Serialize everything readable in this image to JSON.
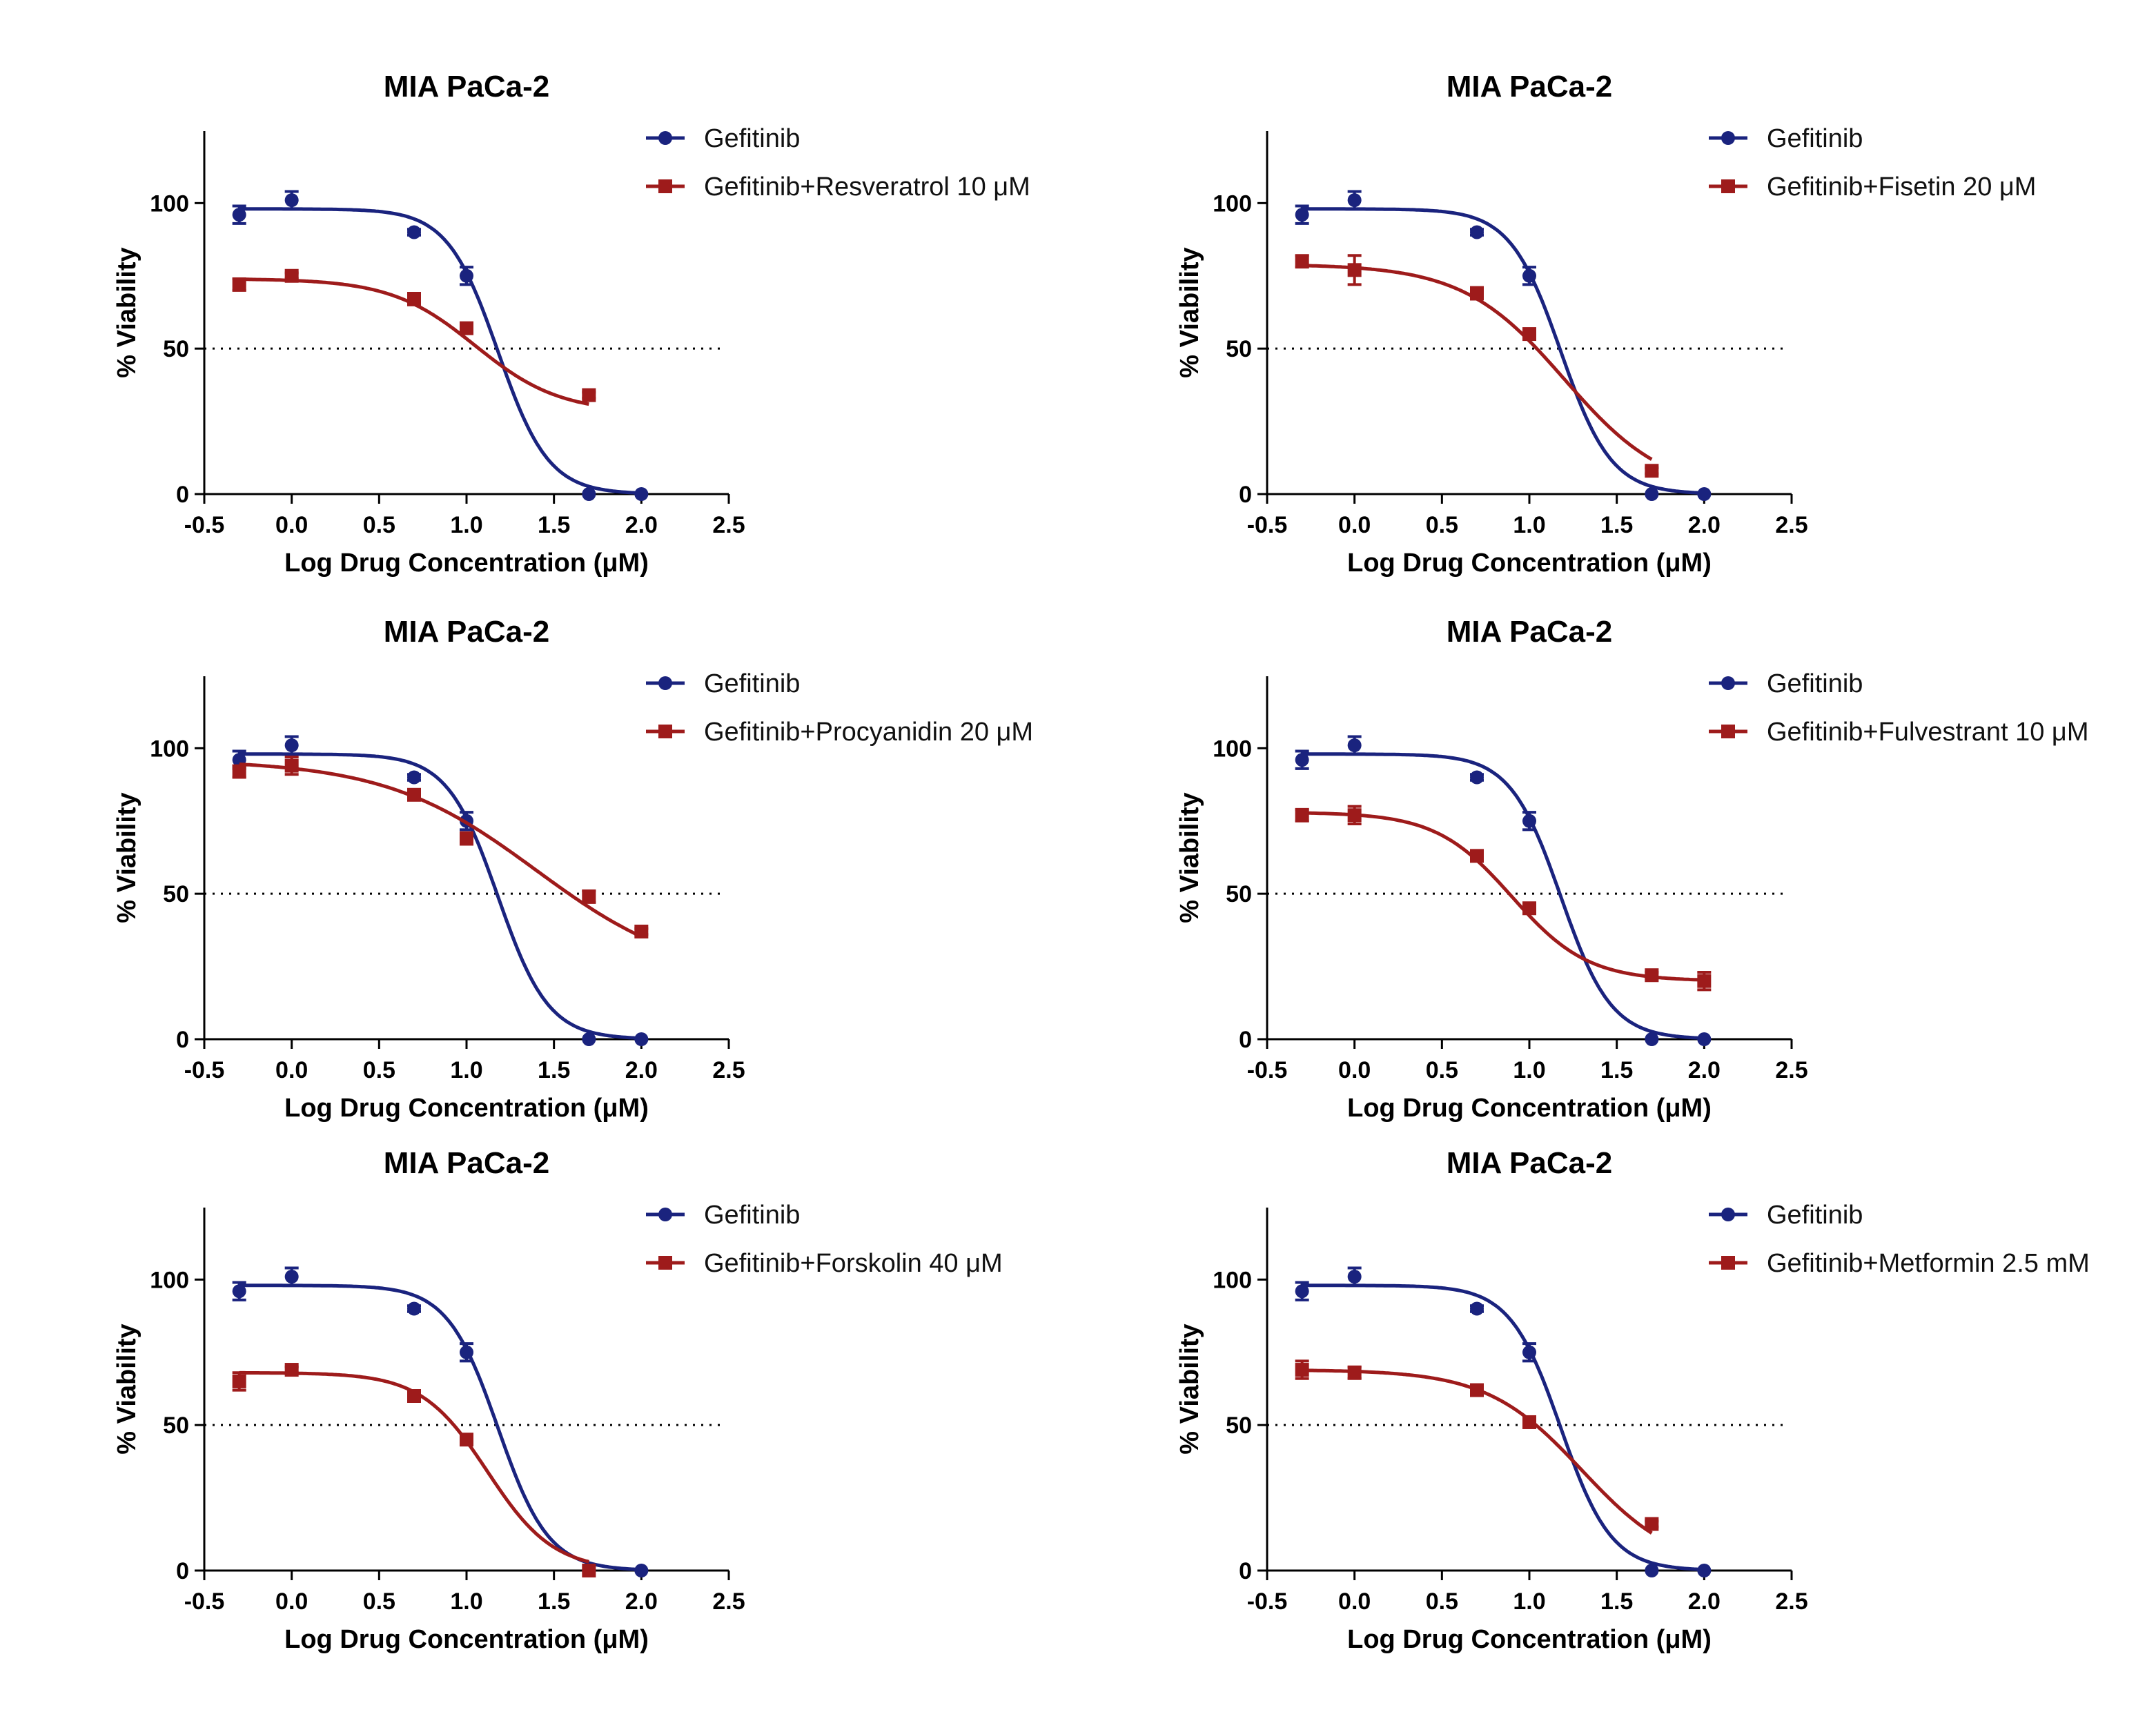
{
  "colors": {
    "gefitinib": "#1a237e",
    "combo": "#9e1b1b",
    "axis": "#000000"
  },
  "chart_data": [
    {
      "type": "line",
      "title": "MIA PaCa-2",
      "xlabel": "Log Drug Concentration (μM)",
      "ylabel": "% Viability",
      "xlim": [
        -0.5,
        2.5
      ],
      "ylim": [
        0,
        120
      ],
      "xticks": [
        "-0.5",
        "0.0",
        "0.5",
        "1.0",
        "1.5",
        "2.0",
        "2.5"
      ],
      "yticks": [
        "0",
        "50",
        "100"
      ],
      "reference_line_y": 50,
      "series": [
        {
          "name": "Gefitinib",
          "marker": "circle",
          "x": [
            -0.3,
            0.0,
            0.7,
            1.0,
            1.7,
            2.0
          ],
          "y": [
            96,
            101,
            90,
            75,
            0,
            0
          ],
          "err": [
            3,
            3,
            1,
            3,
            0,
            0
          ],
          "fit": {
            "bottom": 0,
            "top": 98,
            "logIC50": 1.18,
            "hill": 3.0
          }
        },
        {
          "name": "Gefitinib+Resveratrol 10 μM",
          "marker": "square",
          "x": [
            -0.3,
            0.0,
            0.7,
            1.0,
            1.7
          ],
          "y": [
            72,
            75,
            67,
            57,
            34
          ],
          "err": [
            2,
            1,
            2,
            1,
            1
          ],
          "fit": {
            "bottom": 28,
            "top": 74,
            "logIC50": 1.05,
            "hill": 1.8
          }
        }
      ]
    },
    {
      "type": "line",
      "title": "MIA PaCa-2",
      "xlabel": "Log Drug Concentration (μM)",
      "ylabel": "% Viability",
      "xlim": [
        -0.5,
        2.5
      ],
      "ylim": [
        0,
        120
      ],
      "xticks": [
        "-0.5",
        "0.0",
        "0.5",
        "1.0",
        "1.5",
        "2.0",
        "2.5"
      ],
      "yticks": [
        "0",
        "50",
        "100"
      ],
      "reference_line_y": 50,
      "series": [
        {
          "name": "Gefitinib",
          "marker": "circle",
          "x": [
            -0.3,
            0.0,
            0.7,
            1.0,
            1.7,
            2.0
          ],
          "y": [
            96,
            101,
            90,
            75,
            0,
            0
          ],
          "err": [
            3,
            3,
            1,
            3,
            0,
            0
          ],
          "fit": {
            "bottom": 0,
            "top": 98,
            "logIC50": 1.18,
            "hill": 3.0
          }
        },
        {
          "name": "Gefitinib+Fisetin 20 μM",
          "marker": "square",
          "x": [
            -0.3,
            0.0,
            0.7,
            1.0,
            1.7
          ],
          "y": [
            80,
            77,
            69,
            55,
            8
          ],
          "err": [
            2,
            5,
            2,
            1,
            1
          ],
          "fit": {
            "bottom": 0,
            "top": 79,
            "logIC50": 1.2,
            "hill": 1.5
          }
        }
      ]
    },
    {
      "type": "line",
      "title": "MIA PaCa-2",
      "xlabel": "Log Drug Concentration (μM)",
      "ylabel": "% Viability",
      "xlim": [
        -0.5,
        2.5
      ],
      "ylim": [
        0,
        120
      ],
      "xticks": [
        "-0.5",
        "0.0",
        "0.5",
        "1.0",
        "1.5",
        "2.0",
        "2.5"
      ],
      "yticks": [
        "0",
        "50",
        "100"
      ],
      "reference_line_y": 50,
      "series": [
        {
          "name": "Gefitinib",
          "marker": "circle",
          "x": [
            -0.3,
            0.0,
            0.7,
            1.0,
            1.7,
            2.0
          ],
          "y": [
            96,
            101,
            90,
            75,
            0,
            0
          ],
          "err": [
            3,
            3,
            1,
            3,
            0,
            0
          ],
          "fit": {
            "bottom": 0,
            "top": 98,
            "logIC50": 1.18,
            "hill": 3.0
          }
        },
        {
          "name": "Gefitinib+Procyanidin 20 μM",
          "marker": "square",
          "x": [
            -0.3,
            0.0,
            0.7,
            1.0,
            1.7,
            2.0
          ],
          "y": [
            92,
            94,
            84,
            69,
            49,
            37
          ],
          "err": [
            2,
            3,
            1,
            2,
            2,
            1
          ],
          "fit": {
            "bottom": 20,
            "top": 96,
            "logIC50": 1.4,
            "hill": 1.0
          }
        }
      ]
    },
    {
      "type": "line",
      "title": "MIA PaCa-2",
      "xlabel": "Log Drug Concentration (μM)",
      "ylabel": "% Viability",
      "xlim": [
        -0.5,
        2.5
      ],
      "ylim": [
        0,
        120
      ],
      "xticks": [
        "-0.5",
        "0.0",
        "0.5",
        "1.0",
        "1.5",
        "2.0",
        "2.5"
      ],
      "yticks": [
        "0",
        "50",
        "100"
      ],
      "reference_line_y": 50,
      "series": [
        {
          "name": "Gefitinib",
          "marker": "circle",
          "x": [
            -0.3,
            0.0,
            0.7,
            1.0,
            1.7,
            2.0
          ],
          "y": [
            96,
            101,
            90,
            75,
            0,
            0
          ],
          "err": [
            3,
            3,
            1,
            3,
            0,
            0
          ],
          "fit": {
            "bottom": 0,
            "top": 98,
            "logIC50": 1.18,
            "hill": 3.0
          }
        },
        {
          "name": "Gefitinib+Fulvestrant 10 μM",
          "marker": "square",
          "x": [
            -0.3,
            0.0,
            0.7,
            1.0,
            1.7,
            2.0
          ],
          "y": [
            77,
            77,
            63,
            45,
            22,
            20
          ],
          "err": [
            2,
            3,
            1,
            1,
            1,
            3
          ],
          "fit": {
            "bottom": 20,
            "top": 78,
            "logIC50": 0.9,
            "hill": 2.0
          }
        }
      ]
    },
    {
      "type": "line",
      "title": "MIA PaCa-2",
      "xlabel": "Log Drug Concentration (μM)",
      "ylabel": "% Viability",
      "xlim": [
        -0.5,
        2.5
      ],
      "ylim": [
        0,
        120
      ],
      "xticks": [
        "-0.5",
        "0.0",
        "0.5",
        "1.0",
        "1.5",
        "2.0",
        "2.5"
      ],
      "yticks": [
        "0",
        "50",
        "100"
      ],
      "reference_line_y": 50,
      "series": [
        {
          "name": "Gefitinib",
          "marker": "circle",
          "x": [
            -0.3,
            0.0,
            0.7,
            1.0,
            1.7,
            2.0
          ],
          "y": [
            96,
            101,
            90,
            75,
            0,
            0
          ],
          "err": [
            3,
            3,
            1,
            3,
            0,
            0
          ],
          "fit": {
            "bottom": 0,
            "top": 98,
            "logIC50": 1.18,
            "hill": 3.0
          }
        },
        {
          "name": "Gefitinib+Forskolin 40 μM",
          "marker": "square",
          "x": [
            -0.3,
            0.0,
            0.7,
            1.0,
            1.7
          ],
          "y": [
            65,
            69,
            60,
            45,
            0
          ],
          "err": [
            3,
            1,
            1,
            1,
            0
          ],
          "fit": {
            "bottom": 0,
            "top": 68,
            "logIC50": 1.12,
            "hill": 2.3
          }
        }
      ]
    },
    {
      "type": "line",
      "title": "MIA PaCa-2",
      "xlabel": "Log Drug Concentration (μM)",
      "ylabel": "% Viability",
      "xlim": [
        -0.5,
        2.5
      ],
      "ylim": [
        0,
        120
      ],
      "xticks": [
        "-0.5",
        "0.0",
        "0.5",
        "1.0",
        "1.5",
        "2.0",
        "2.5"
      ],
      "yticks": [
        "0",
        "50",
        "100"
      ],
      "reference_line_y": 50,
      "series": [
        {
          "name": "Gefitinib",
          "marker": "circle",
          "x": [
            -0.3,
            0.0,
            0.7,
            1.0,
            1.7,
            2.0
          ],
          "y": [
            96,
            101,
            90,
            75,
            0,
            0
          ],
          "err": [
            3,
            3,
            1,
            3,
            0,
            0
          ],
          "fit": {
            "bottom": 0,
            "top": 98,
            "logIC50": 1.18,
            "hill": 3.0
          }
        },
        {
          "name": "Gefitinib+Metformin 2.5 mM",
          "marker": "square",
          "x": [
            -0.3,
            0.0,
            0.7,
            1.0,
            1.7
          ],
          "y": [
            69,
            68,
            62,
            51,
            16
          ],
          "err": [
            3,
            2,
            1,
            1,
            1
          ],
          "fit": {
            "bottom": 0,
            "top": 69,
            "logIC50": 1.3,
            "hill": 1.6
          }
        }
      ]
    }
  ]
}
